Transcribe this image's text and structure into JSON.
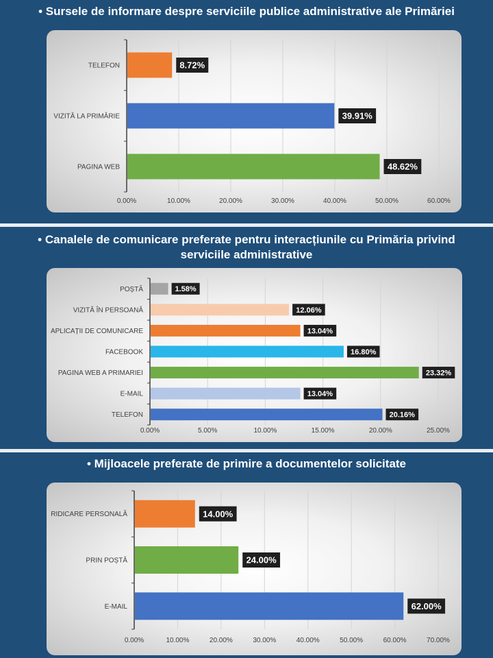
{
  "sections": [
    {
      "title": "•  Sursele de informare despre serviciile publice administrative ale Primăriei"
    },
    {
      "title": "•  Canalele de comunicare preferate pentru interacțiunile cu Primăria privind",
      "title2": "serviciile administrative"
    },
    {
      "title": "•  Mijloacele preferate de primire a documentelor solicitate"
    }
  ],
  "chart_data": [
    {
      "type": "bar",
      "orientation": "horizontal",
      "categories": [
        "TELEFON",
        "VIZITĂ LA PRIMĂRIE",
        "PAGINA WEB"
      ],
      "values": [
        8.72,
        39.91,
        48.62
      ],
      "value_labels": [
        "8.72%",
        "39.91%",
        "48.62%"
      ],
      "colors": [
        "#ed7d31",
        "#4472c4",
        "#70ad47"
      ],
      "xlim": [
        0,
        60
      ],
      "ticks": [
        "0.00%",
        "10.00%",
        "20.00%",
        "30.00%",
        "40.00%",
        "50.00%",
        "60.00%"
      ],
      "grid": true
    },
    {
      "type": "bar",
      "orientation": "horizontal",
      "categories": [
        "POȘTĂ",
        "VIZITĂ ÎN PERSOANĂ",
        "APLICAȚII DE COMUNICARE",
        "FACEBOOK",
        "PAGINA WEB A PRIMARIEI",
        "E-MAIL",
        "TELEFON"
      ],
      "values": [
        1.58,
        12.06,
        13.04,
        16.8,
        23.32,
        13.04,
        20.16
      ],
      "value_labels": [
        "1.58%",
        "12.06%",
        "13.04%",
        "16.80%",
        "23.32%",
        "13.04%",
        "20.16%"
      ],
      "colors": [
        "#a5a5a5",
        "#f8cbad",
        "#ed7d31",
        "#29b6e8",
        "#70ad47",
        "#b4c7e7",
        "#4472c4"
      ],
      "xlim": [
        0,
        25
      ],
      "ticks": [
        "0.00%",
        "5.00%",
        "10.00%",
        "15.00%",
        "20.00%",
        "25.00%"
      ],
      "grid": true
    },
    {
      "type": "bar",
      "orientation": "horizontal",
      "categories": [
        "RIDICARE PERSONALĂ",
        "PRIN POȘTĂ",
        "E-MAIL"
      ],
      "values": [
        14.0,
        24.0,
        62.0
      ],
      "value_labels": [
        "14.00%",
        "24.00%",
        "62.00%"
      ],
      "colors": [
        "#ed7d31",
        "#70ad47",
        "#4472c4"
      ],
      "xlim": [
        0,
        70
      ],
      "ticks": [
        "0.00%",
        "10.00%",
        "20.00%",
        "30.00%",
        "40.00%",
        "50.00%",
        "60.00%",
        "70.00%"
      ],
      "grid": true
    }
  ]
}
